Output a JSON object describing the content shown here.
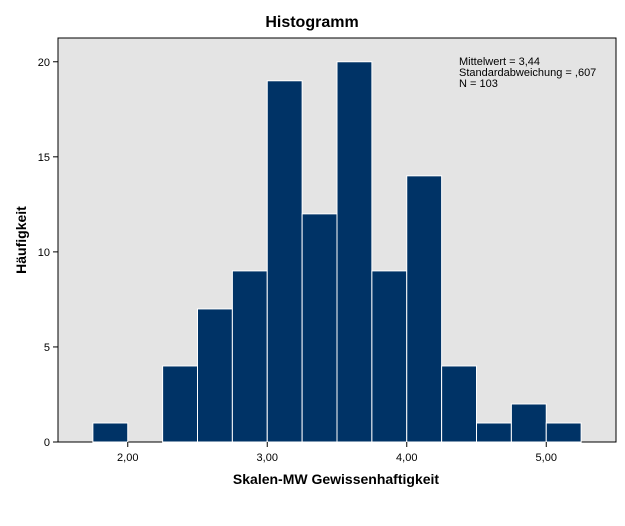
{
  "chart_data": {
    "type": "bar",
    "title": "Histogramm",
    "xlabel": "Skalen-MW Gewissenhaftigkeit",
    "ylabel": "Häufigkeit",
    "bin_width": 0.25,
    "bins": [
      {
        "start": 1.75,
        "end": 2.0,
        "count": 1
      },
      {
        "start": 2.0,
        "end": 2.25,
        "count": 0
      },
      {
        "start": 2.25,
        "end": 2.5,
        "count": 4
      },
      {
        "start": 2.5,
        "end": 2.75,
        "count": 7
      },
      {
        "start": 2.75,
        "end": 3.0,
        "count": 9
      },
      {
        "start": 3.0,
        "end": 3.25,
        "count": 19
      },
      {
        "start": 3.25,
        "end": 3.5,
        "count": 12
      },
      {
        "start": 3.5,
        "end": 3.75,
        "count": 20
      },
      {
        "start": 3.75,
        "end": 4.0,
        "count": 9
      },
      {
        "start": 4.0,
        "end": 4.25,
        "count": 14
      },
      {
        "start": 4.25,
        "end": 4.5,
        "count": 4
      },
      {
        "start": 4.5,
        "end": 4.75,
        "count": 1
      },
      {
        "start": 4.75,
        "end": 5.0,
        "count": 2
      },
      {
        "start": 5.0,
        "end": 5.25,
        "count": 1
      }
    ],
    "xlim": [
      1.5,
      5.5
    ],
    "ylim": [
      0,
      21.25
    ],
    "x_ticks": [
      {
        "value": 2,
        "label": "2,00"
      },
      {
        "value": 3,
        "label": "3,00"
      },
      {
        "value": 4,
        "label": "4,00"
      },
      {
        "value": 5,
        "label": "5,00"
      }
    ],
    "y_ticks": [
      {
        "value": 0,
        "label": "0"
      },
      {
        "value": 5,
        "label": "5"
      },
      {
        "value": 10,
        "label": "10"
      },
      {
        "value": 15,
        "label": "15"
      },
      {
        "value": 20,
        "label": "20"
      }
    ],
    "stats": [
      "Mittelwert = 3,44",
      "Standardabweichung = ,607",
      "N = 103"
    ],
    "stats_placement": "top-right",
    "grid": false,
    "colors": {
      "bar_fill": "#003366",
      "bar_edge": "#ffffff",
      "plot_background": "#e4e4e4",
      "axis": "#000000"
    }
  }
}
